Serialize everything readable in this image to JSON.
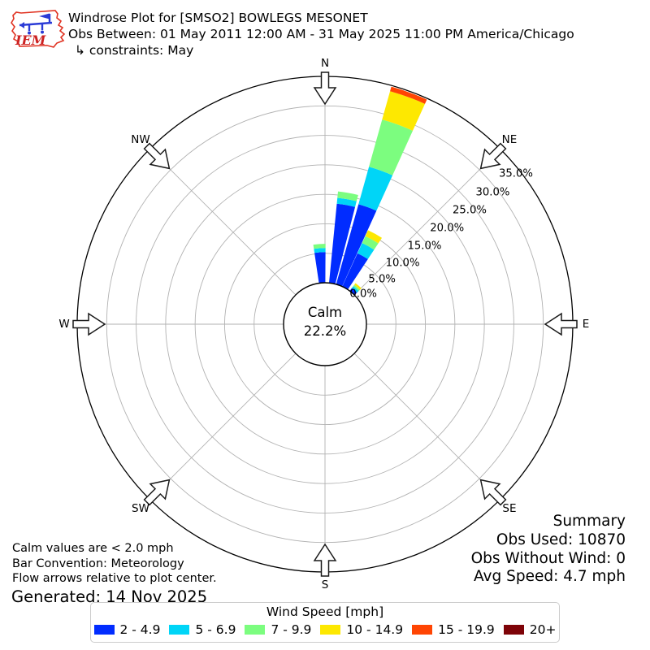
{
  "header": {
    "logo_text": "IEM",
    "title": "Windrose Plot for [SMSO2] BOWLEGS MESONET",
    "subtitle": "Obs Between: 01 May 2011 12:00 AM - 31 May 2025 11:00 PM America/Chicago",
    "constraints": "↳ constraints: May"
  },
  "chart_data": {
    "type": "windrose stacked polar bar",
    "title": "Windrose Plot for [SMSO2] BOWLEGS MESONET",
    "compass_labels": [
      "N",
      "NE",
      "E",
      "SE",
      "S",
      "SW",
      "W",
      "NW"
    ],
    "ring_labels": [
      "0.0%",
      "5.0%",
      "10.0%",
      "15.0%",
      "20.0%",
      "25.0%",
      "30.0%",
      "35.0%"
    ],
    "ring_percents": [
      0,
      5,
      10,
      15,
      20,
      25,
      30,
      35
    ],
    "rmax_percent": 35,
    "grid": "polar rings every 5%, 8 radial spokes",
    "calm": {
      "label": "Calm",
      "value": "22.2%"
    },
    "legend_title": "Wind Speed [mph]",
    "speed_bins": [
      {
        "label": "2 - 4.9",
        "color": "#012CFF"
      },
      {
        "label": "5 - 6.9",
        "color": "#00D5F7"
      },
      {
        "label": "7 - 9.9",
        "color": "#7CFD7F"
      },
      {
        "label": "10 - 14.9",
        "color": "#FDE801"
      },
      {
        "label": "15 - 19.9",
        "color": "#FF4503"
      },
      {
        "label": "20+",
        "color": "#7E0308"
      }
    ],
    "bar_width_deg": 8.8,
    "bars": [
      {
        "direction_deg": 356,
        "stack_percent": [
          5.2,
          0.7,
          0.7,
          0,
          0,
          0
        ],
        "total_percent": 6.6
      },
      {
        "direction_deg": 10,
        "stack_percent": [
          13.5,
          1.0,
          1.1,
          0,
          0,
          0
        ],
        "total_percent": 15.6
      },
      {
        "direction_deg": 20,
        "stack_percent": [
          14.1,
          6.6,
          8.3,
          5.0,
          0.8,
          0
        ],
        "total_percent": 34.8
      },
      {
        "direction_deg": 29,
        "stack_percent": [
          6.2,
          1.9,
          1.3,
          1.1,
          0,
          0
        ],
        "total_percent": 10.5
      },
      {
        "direction_deg": 41,
        "stack_percent": [
          0.6,
          0.4,
          0.3,
          0.35,
          0,
          0
        ],
        "total_percent": 1.65
      }
    ]
  },
  "summary": {
    "title": "Summary",
    "lines": [
      "Obs Used: 10870",
      "Obs Without Wind: 0",
      "Avg Speed: 4.7 mph"
    ]
  },
  "footnotes": [
    "Calm values are < 2.0 mph",
    "Bar Convention: Meteorology",
    "Flow arrows relative to plot center."
  ],
  "generated": "Generated: 14 Nov 2025"
}
